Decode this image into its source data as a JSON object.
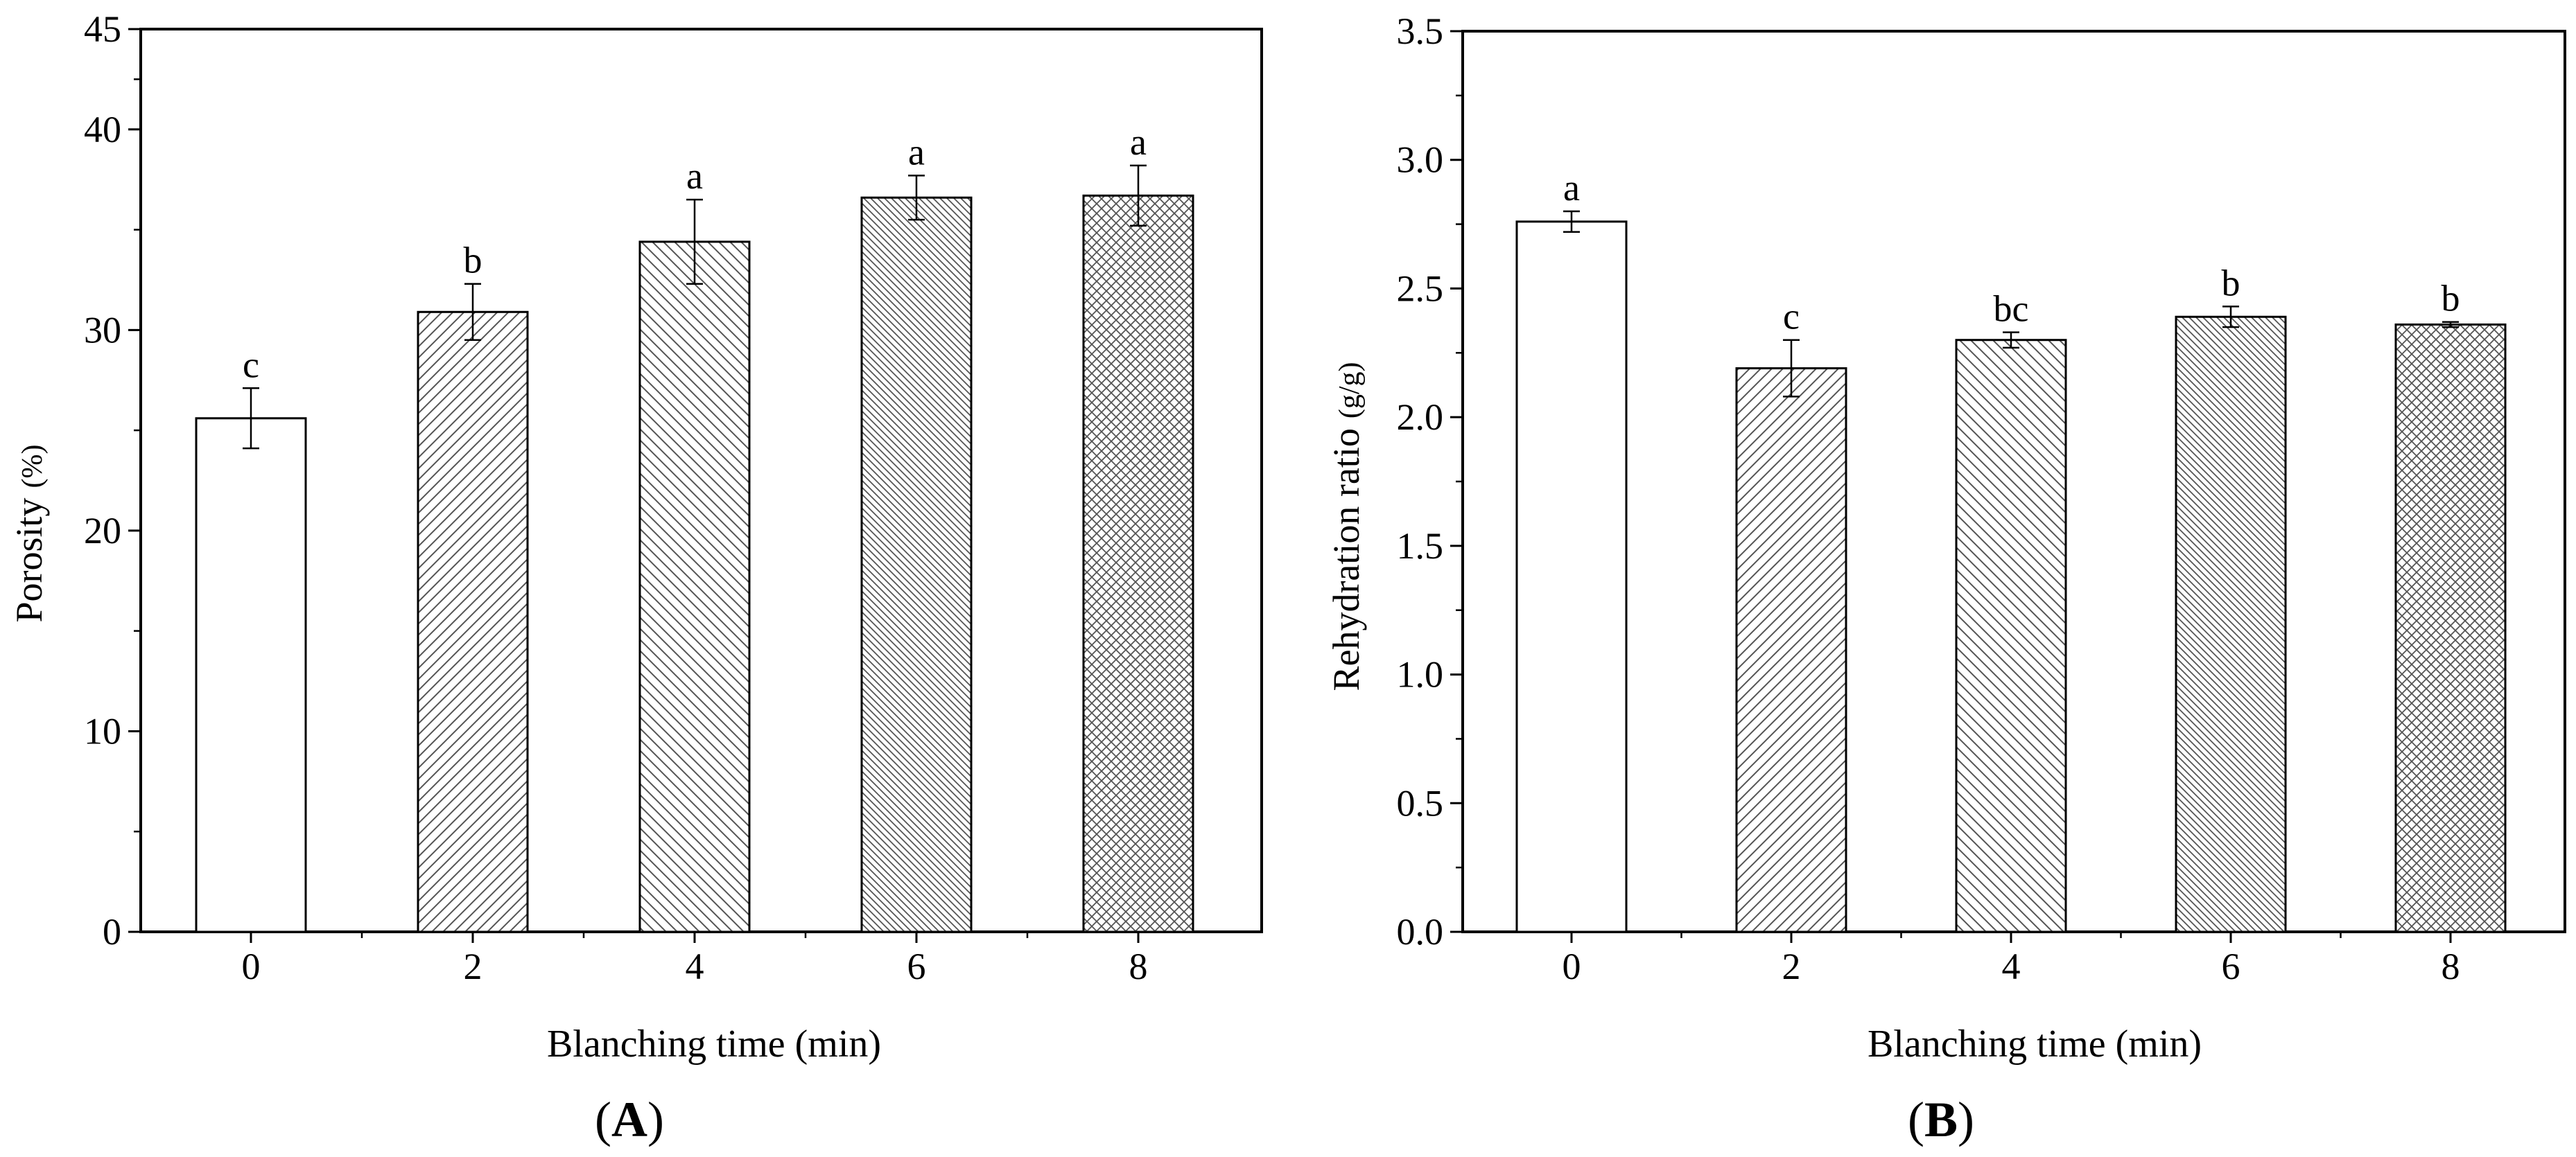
{
  "chart_data": [
    {
      "type": "bar",
      "panel_label": "A",
      "categories": [
        "0",
        "2",
        "4",
        "6",
        "8"
      ],
      "values": [
        25.6,
        30.9,
        34.4,
        36.6,
        36.7
      ],
      "errors": [
        1.5,
        1.4,
        2.1,
        1.1,
        1.5
      ],
      "significance_letters": [
        "c",
        "b",
        "a",
        "a",
        "a"
      ],
      "patterns": [
        "none",
        "diag-fwd",
        "diag-back",
        "diag-back-dense",
        "cross"
      ],
      "title": "",
      "xlabel": "Blanching time (min)",
      "ylabel_main": "Porosity",
      "ylabel_unit": "(%)",
      "ylim": [
        0,
        45
      ],
      "yticks": [
        0,
        10,
        20,
        30,
        40,
        45
      ],
      "ytick_labels": [
        "0",
        "10",
        "20",
        "30",
        "40",
        "45"
      ],
      "grid": false
    },
    {
      "type": "bar",
      "panel_label": "B",
      "categories": [
        "0",
        "2",
        "4",
        "6",
        "8"
      ],
      "values": [
        2.76,
        2.19,
        2.3,
        2.39,
        2.36
      ],
      "errors": [
        0.04,
        0.11,
        0.03,
        0.04,
        0.01
      ],
      "significance_letters": [
        "a",
        "c",
        "bc",
        "b",
        "b"
      ],
      "patterns": [
        "none",
        "diag-fwd",
        "diag-back",
        "diag-back-dense",
        "cross"
      ],
      "title": "",
      "xlabel": "Blanching time (min)",
      "ylabel_main": "Rehydration ratio",
      "ylabel_unit": "(g/g)",
      "ylim": [
        0,
        3.5
      ],
      "yticks": [
        0,
        0.5,
        1.0,
        1.5,
        2.0,
        2.5,
        3.0,
        3.5
      ],
      "ytick_labels": [
        "0.0",
        "0.5",
        "1.0",
        "1.5",
        "2.0",
        "2.5",
        "3.0",
        "3.5"
      ],
      "grid": false
    }
  ]
}
